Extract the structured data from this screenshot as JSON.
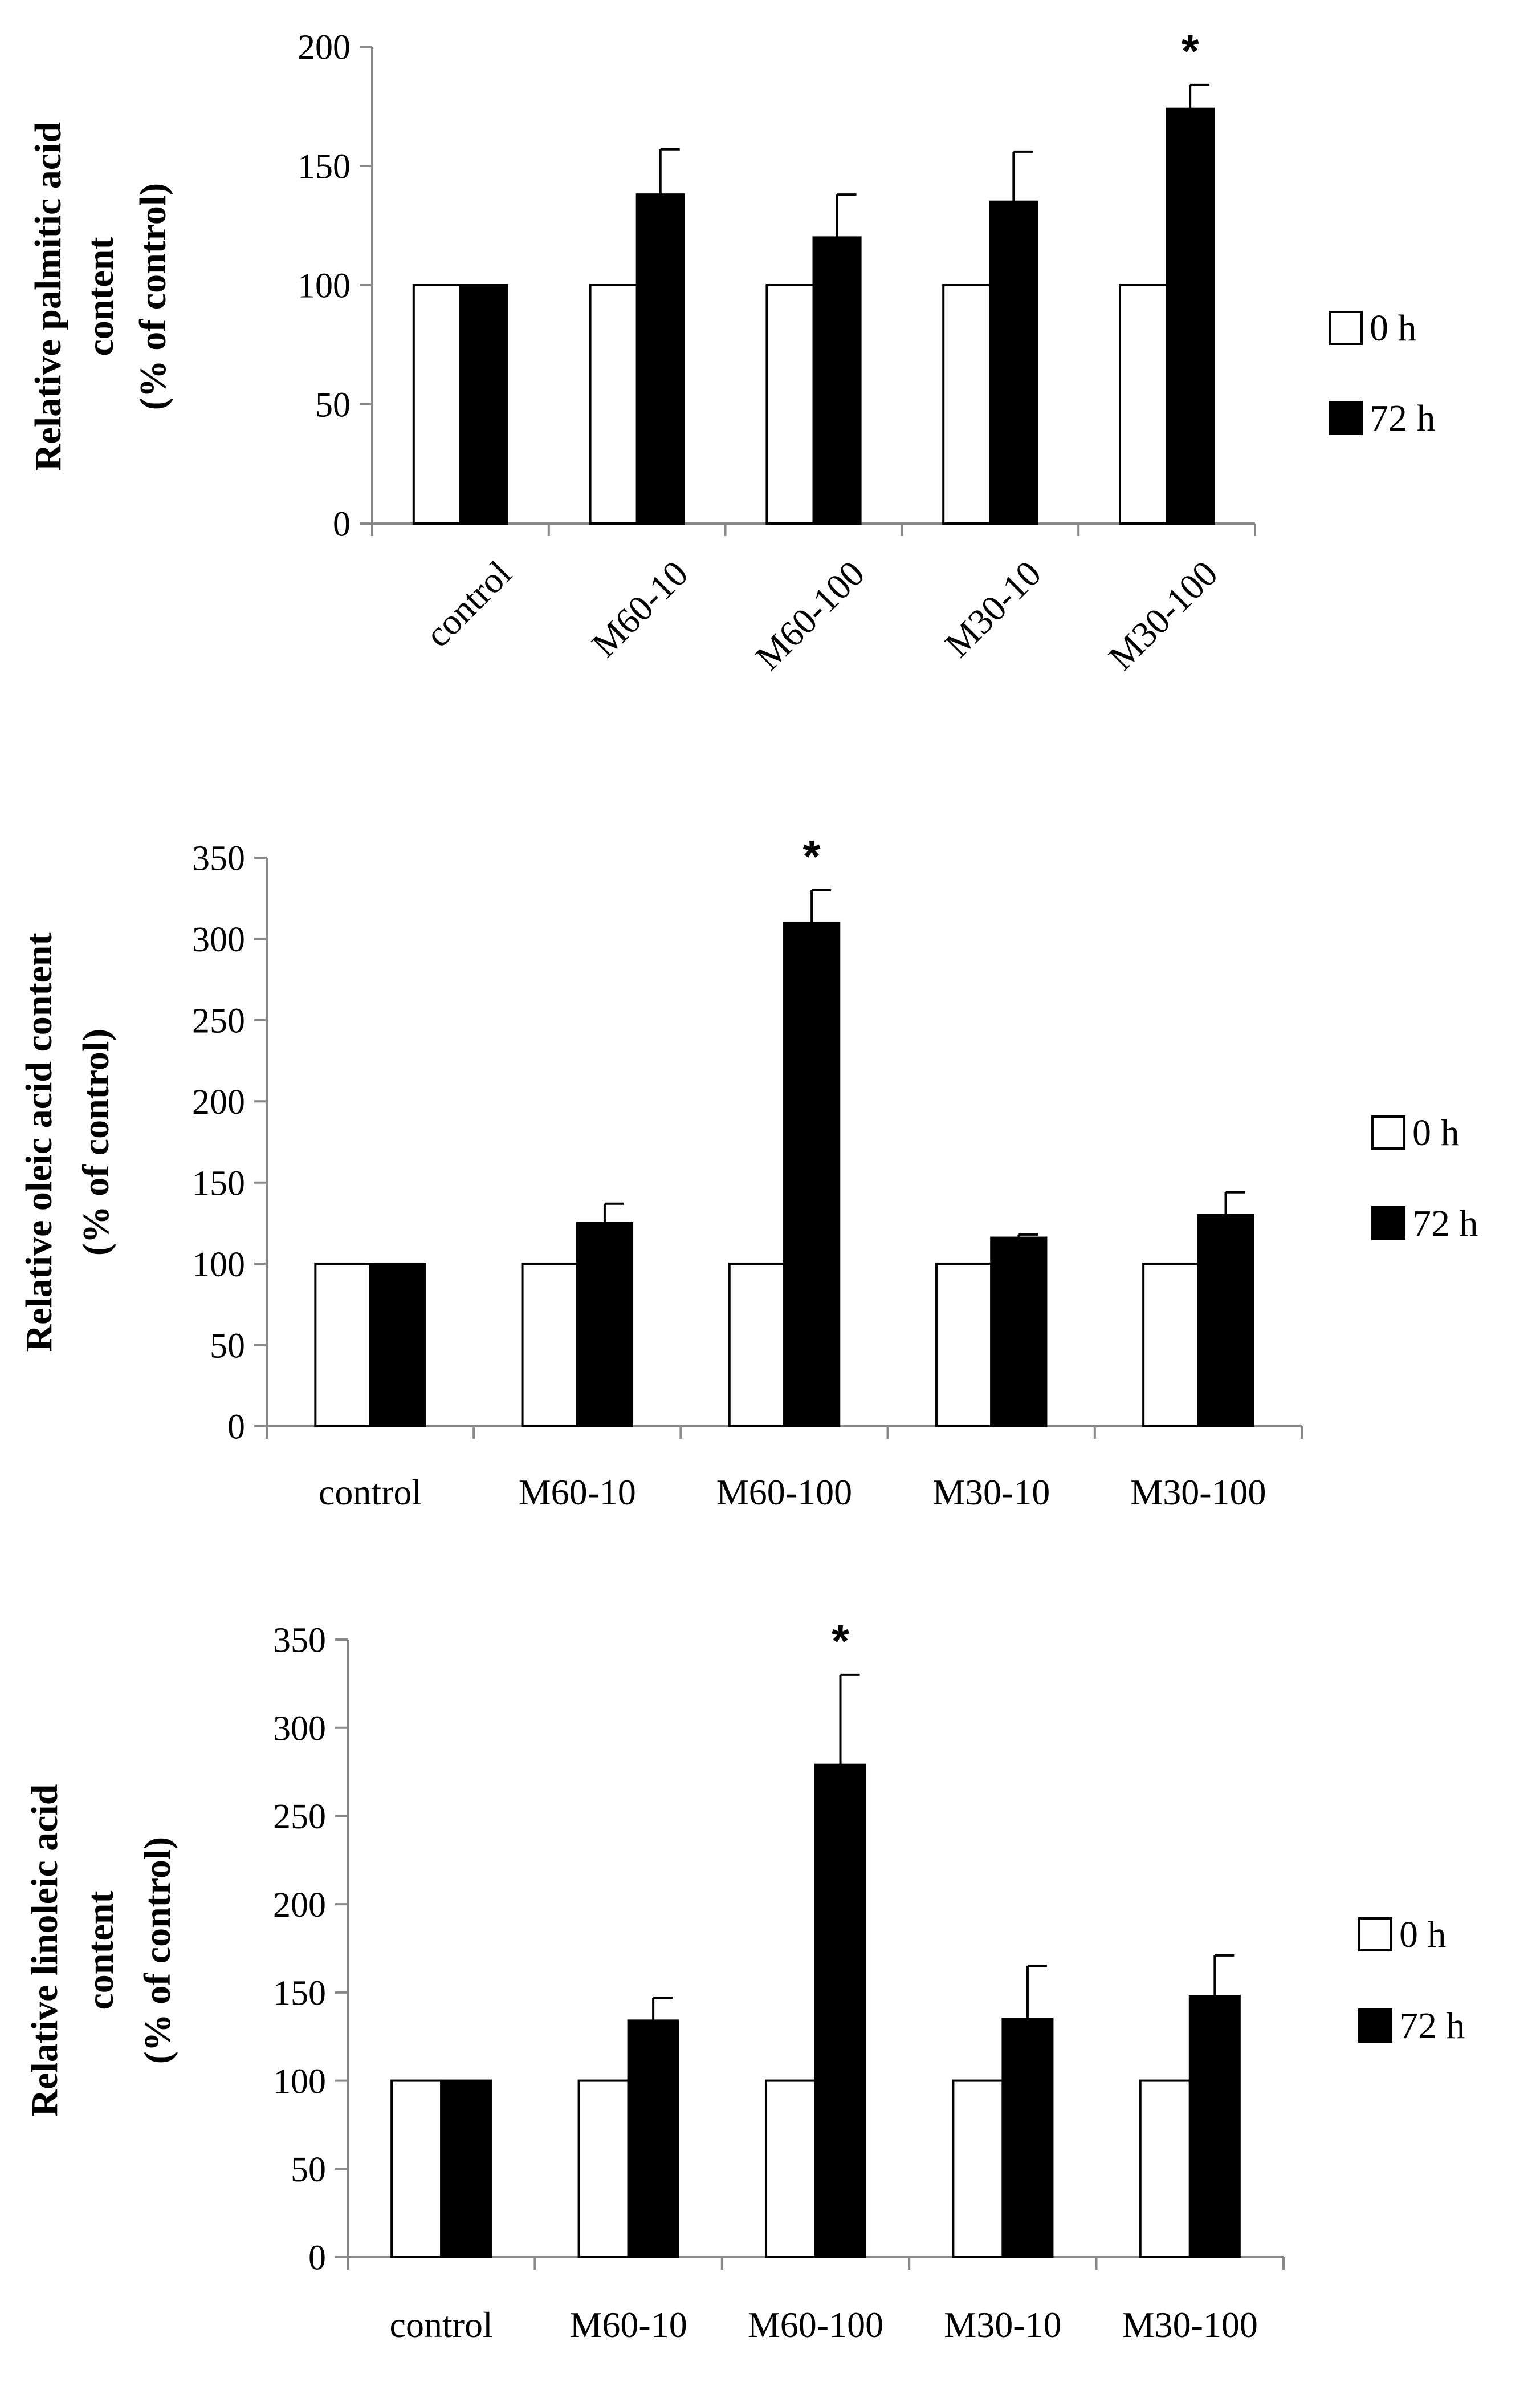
{
  "chart_data": [
    {
      "type": "bar",
      "categories": [
        "control",
        "M60-10",
        "M60-100",
        "M30-10",
        "M30-100"
      ],
      "series": [
        {
          "name": "0 h",
          "color": "#ffffff",
          "values": [
            100,
            100,
            100,
            100,
            100
          ]
        },
        {
          "name": "72 h",
          "color": "#000000",
          "values": [
            100,
            138,
            120,
            135,
            174
          ],
          "errors": [
            0,
            19,
            18,
            21,
            10
          ]
        }
      ],
      "ylabel_lines": [
        "Relative palmitic acid",
        "content",
        "(% of control)"
      ],
      "ylim": [
        0,
        200
      ],
      "yticks": [
        0,
        50,
        100,
        150,
        200
      ],
      "significance": [
        {
          "category": "M30-100",
          "series": "72 h",
          "label": "*"
        }
      ],
      "legend": [
        "0 h",
        "72 h"
      ],
      "rotated_tick_labels": true
    },
    {
      "type": "bar",
      "categories": [
        "control",
        "M60-10",
        "M60-100",
        "M30-10",
        "M30-100"
      ],
      "series": [
        {
          "name": "0 h",
          "color": "#ffffff",
          "values": [
            100,
            100,
            100,
            100,
            100
          ]
        },
        {
          "name": "72 h",
          "color": "#000000",
          "values": [
            100,
            125,
            310,
            116,
            130
          ],
          "errors": [
            0,
            12,
            20,
            2,
            14
          ]
        }
      ],
      "ylabel_lines": [
        "Relative oleic acid content",
        "(% of control)"
      ],
      "ylim": [
        0,
        350
      ],
      "yticks": [
        0,
        50,
        100,
        150,
        200,
        250,
        300,
        350
      ],
      "significance": [
        {
          "category": "M60-100",
          "series": "72 h",
          "label": "*"
        }
      ],
      "legend": [
        "0 h",
        "72 h"
      ],
      "rotated_tick_labels": false
    },
    {
      "type": "bar",
      "categories": [
        "control",
        "M60-10",
        "M60-100",
        "M30-10",
        "M30-100"
      ],
      "series": [
        {
          "name": "0 h",
          "color": "#ffffff",
          "values": [
            100,
            100,
            100,
            100,
            100
          ]
        },
        {
          "name": "72 h",
          "color": "#000000",
          "values": [
            100,
            134,
            279,
            135,
            148
          ],
          "errors": [
            0,
            13,
            51,
            30,
            23
          ]
        }
      ],
      "ylabel_lines": [
        "Relative linoleic acid",
        "content",
        "(% of control)"
      ],
      "ylim": [
        0,
        350
      ],
      "yticks": [
        0,
        50,
        100,
        150,
        200,
        250,
        300,
        350
      ],
      "significance": [
        {
          "category": "M60-100",
          "series": "72 h",
          "label": "*"
        }
      ],
      "legend": [
        "0 h",
        "72 h"
      ],
      "rotated_tick_labels": false
    }
  ]
}
